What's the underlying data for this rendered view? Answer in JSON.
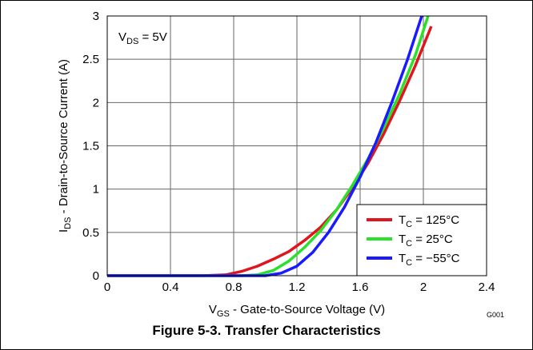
{
  "chart_data": {
    "type": "line",
    "xlabel_main": "V",
    "xlabel_sub": "GS",
    "xlabel_rest": " - Gate-to-Source Voltage (V)",
    "ylabel_main": "I",
    "ylabel_sub": "DS",
    "ylabel_rest": " - Drain-to-Source Current (A)",
    "xlim": [
      0,
      2.4
    ],
    "ylim": [
      0,
      3
    ],
    "xticks": [
      0,
      0.4,
      0.8,
      1.2,
      1.6,
      2,
      2.4
    ],
    "xtick_labels": [
      "0",
      "0.4",
      "0.8",
      "1.2",
      "1.6",
      "2",
      "2.4"
    ],
    "yticks": [
      0,
      0.5,
      1,
      1.5,
      2,
      2.5,
      3
    ],
    "ytick_labels": [
      "0",
      "0.5",
      "1",
      "1.5",
      "2",
      "2.5",
      "3"
    ],
    "grid": true,
    "legend_position": "bottom-right",
    "annotation": {
      "main": "V",
      "sub": "DS",
      "rest": " = 5V"
    },
    "figure_code": "G001",
    "series": [
      {
        "label_main": "T",
        "label_sub": "C",
        "label_rest": " = 125°C",
        "color": "#e0161e",
        "x": [
          0,
          0.6,
          0.75,
          0.85,
          0.95,
          1.05,
          1.15,
          1.25,
          1.35,
          1.45,
          1.55,
          1.65,
          1.75,
          1.85,
          1.95,
          2.05
        ],
        "y": [
          0,
          0,
          0.01,
          0.05,
          0.11,
          0.19,
          0.28,
          0.41,
          0.56,
          0.76,
          1.01,
          1.3,
          1.64,
          2.02,
          2.43,
          2.88
        ]
      },
      {
        "label_main": "T",
        "label_sub": "C",
        "label_rest": " = 25°C",
        "color": "#2be02b",
        "x": [
          0,
          0.85,
          0.95,
          1.05,
          1.15,
          1.25,
          1.35,
          1.45,
          1.55,
          1.65,
          1.75,
          1.85,
          1.95,
          2.03
        ],
        "y": [
          0,
          0,
          0.01,
          0.06,
          0.17,
          0.33,
          0.52,
          0.76,
          1.04,
          1.35,
          1.71,
          2.1,
          2.55,
          3.0
        ]
      },
      {
        "label_main": "T",
        "label_sub": "C",
        "label_rest": " = −55°C",
        "color": "#1a1aff",
        "x": [
          0,
          1.0,
          1.1,
          1.2,
          1.3,
          1.4,
          1.5,
          1.6,
          1.7,
          1.8,
          1.9,
          1.99
        ],
        "y": [
          0,
          0,
          0.03,
          0.11,
          0.27,
          0.5,
          0.79,
          1.14,
          1.54,
          2.0,
          2.5,
          3.0
        ]
      }
    ]
  },
  "caption": "Figure 5-3. Transfer Characteristics"
}
